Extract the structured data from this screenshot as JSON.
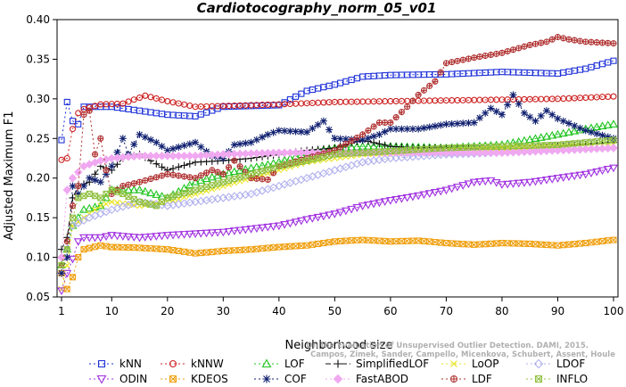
{
  "chart_data": {
    "type": "line",
    "title": "Cardiotocography_norm_05_v01",
    "xlabel": "Neighborhood size",
    "ylabel": "Adjusted Maximum F1",
    "xlim": [
      1,
      100
    ],
    "ylim": [
      0.05,
      0.4
    ],
    "xticks": [
      1,
      10,
      20,
      30,
      40,
      50,
      60,
      70,
      80,
      90,
      100
    ],
    "yticks": [
      0.05,
      0.1,
      0.15,
      0.2,
      0.25,
      0.3,
      0.35,
      0.4
    ],
    "ytick_labels": [
      "0.05",
      "0.10",
      "0.15",
      "0.20",
      "0.25",
      "0.30",
      "0.35",
      "0.40"
    ],
    "grid": false,
    "legend_position": "bottom",
    "series": [
      {
        "name": "kNN",
        "color": "#1f32d8",
        "marker": "square",
        "dash": "2,3",
        "anchors": [
          [
            1,
            0.248
          ],
          [
            2,
            0.296
          ],
          [
            3,
            0.272
          ],
          [
            4,
            0.268
          ],
          [
            5,
            0.29
          ],
          [
            10,
            0.29
          ],
          [
            15,
            0.285
          ],
          [
            20,
            0.28
          ],
          [
            25,
            0.278
          ],
          [
            30,
            0.29
          ],
          [
            40,
            0.292
          ],
          [
            45,
            0.31
          ],
          [
            50,
            0.318
          ],
          [
            55,
            0.328
          ],
          [
            60,
            0.33
          ],
          [
            70,
            0.331
          ],
          [
            80,
            0.334
          ],
          [
            90,
            0.332
          ],
          [
            95,
            0.338
          ],
          [
            100,
            0.348
          ]
        ]
      },
      {
        "name": "kNNW",
        "color": "#cc1f1f",
        "marker": "circle",
        "dash": "2,3",
        "anchors": [
          [
            1,
            0.223
          ],
          [
            2,
            0.225
          ],
          [
            3,
            0.262
          ],
          [
            4,
            0.282
          ],
          [
            5,
            0.287
          ],
          [
            8,
            0.293
          ],
          [
            12,
            0.294
          ],
          [
            16,
            0.304
          ],
          [
            20,
            0.297
          ],
          [
            25,
            0.29
          ],
          [
            30,
            0.291
          ],
          [
            40,
            0.293
          ],
          [
            50,
            0.296
          ],
          [
            60,
            0.297
          ],
          [
            70,
            0.298
          ],
          [
            80,
            0.299
          ],
          [
            90,
            0.3
          ],
          [
            100,
            0.303
          ]
        ]
      },
      {
        "name": "LOF",
        "color": "#1fc41f",
        "marker": "triangle-up",
        "dash": "2,3",
        "anchors": [
          [
            1,
            0.09
          ],
          [
            2,
            0.11
          ],
          [
            3,
            0.14
          ],
          [
            5,
            0.16
          ],
          [
            8,
            0.165
          ],
          [
            10,
            0.185
          ],
          [
            15,
            0.185
          ],
          [
            20,
            0.175
          ],
          [
            25,
            0.195
          ],
          [
            30,
            0.205
          ],
          [
            40,
            0.22
          ],
          [
            45,
            0.232
          ],
          [
            50,
            0.238
          ],
          [
            55,
            0.24
          ],
          [
            60,
            0.24
          ],
          [
            70,
            0.238
          ],
          [
            80,
            0.242
          ],
          [
            90,
            0.255
          ],
          [
            95,
            0.262
          ],
          [
            100,
            0.268
          ]
        ]
      },
      {
        "name": "SimplifiedLOF",
        "color": "#111111",
        "marker": "plus",
        "dash": "6,3",
        "anchors": [
          [
            1,
            0.11
          ],
          [
            2,
            0.125
          ],
          [
            3,
            0.175
          ],
          [
            4,
            0.19
          ],
          [
            6,
            0.195
          ],
          [
            8,
            0.215
          ],
          [
            10,
            0.21
          ],
          [
            12,
            0.225
          ],
          [
            15,
            0.23
          ],
          [
            20,
            0.21
          ],
          [
            25,
            0.22
          ],
          [
            30,
            0.222
          ],
          [
            35,
            0.225
          ],
          [
            40,
            0.23
          ],
          [
            45,
            0.235
          ],
          [
            50,
            0.238
          ],
          [
            55,
            0.248
          ],
          [
            60,
            0.24
          ],
          [
            65,
            0.238
          ],
          [
            70,
            0.238
          ],
          [
            80,
            0.236
          ],
          [
            90,
            0.24
          ],
          [
            100,
            0.245
          ]
        ]
      },
      {
        "name": "LoOP",
        "color": "#e8e21a",
        "marker": "x",
        "dash": "2,3",
        "anchors": [
          [
            1,
            0.06
          ],
          [
            2,
            0.09
          ],
          [
            3,
            0.14
          ],
          [
            5,
            0.15
          ],
          [
            8,
            0.165
          ],
          [
            10,
            0.17
          ],
          [
            15,
            0.165
          ],
          [
            20,
            0.17
          ],
          [
            25,
            0.18
          ],
          [
            30,
            0.19
          ],
          [
            35,
            0.2
          ],
          [
            40,
            0.21
          ],
          [
            45,
            0.22
          ],
          [
            50,
            0.225
          ],
          [
            55,
            0.23
          ],
          [
            60,
            0.232
          ],
          [
            70,
            0.235
          ],
          [
            80,
            0.238
          ],
          [
            90,
            0.24
          ],
          [
            100,
            0.242
          ]
        ]
      },
      {
        "name": "LDOF",
        "color": "#b0b0ee",
        "marker": "diamond",
        "dash": "2,3",
        "anchors": [
          [
            1,
            0.08
          ],
          [
            3,
            0.14
          ],
          [
            6,
            0.15
          ],
          [
            10,
            0.16
          ],
          [
            15,
            0.17
          ],
          [
            20,
            0.165
          ],
          [
            25,
            0.17
          ],
          [
            30,
            0.175
          ],
          [
            35,
            0.18
          ],
          [
            40,
            0.19
          ],
          [
            45,
            0.2
          ],
          [
            50,
            0.21
          ],
          [
            55,
            0.22
          ],
          [
            60,
            0.225
          ],
          [
            70,
            0.23
          ],
          [
            80,
            0.232
          ],
          [
            90,
            0.235
          ],
          [
            100,
            0.238
          ]
        ]
      },
      {
        "name": "ODIN",
        "color": "#a030e0",
        "marker": "triangle-down",
        "dash": "2,3",
        "anchors": [
          [
            1,
            0.058
          ],
          [
            2,
            0.08
          ],
          [
            3,
            0.098
          ],
          [
            4,
            0.12
          ],
          [
            5,
            0.125
          ],
          [
            8,
            0.125
          ],
          [
            10,
            0.128
          ],
          [
            15,
            0.125
          ],
          [
            20,
            0.128
          ],
          [
            25,
            0.13
          ],
          [
            30,
            0.132
          ],
          [
            35,
            0.136
          ],
          [
            40,
            0.14
          ],
          [
            45,
            0.148
          ],
          [
            50,
            0.155
          ],
          [
            55,
            0.165
          ],
          [
            60,
            0.172
          ],
          [
            65,
            0.178
          ],
          [
            70,
            0.185
          ],
          [
            75,
            0.195
          ],
          [
            78,
            0.197
          ],
          [
            80,
            0.192
          ],
          [
            85,
            0.195
          ],
          [
            90,
            0.2
          ],
          [
            95,
            0.205
          ],
          [
            100,
            0.213
          ]
        ]
      },
      {
        "name": "KDEOS",
        "color": "#f0a010",
        "marker": "x-square",
        "dash": "2,3",
        "anchors": [
          [
            1,
            0.08
          ],
          [
            2,
            0.06
          ],
          [
            3,
            0.075
          ],
          [
            4,
            0.1
          ],
          [
            5,
            0.11
          ],
          [
            8,
            0.115
          ],
          [
            10,
            0.113
          ],
          [
            15,
            0.112
          ],
          [
            20,
            0.11
          ],
          [
            25,
            0.105
          ],
          [
            30,
            0.108
          ],
          [
            35,
            0.11
          ],
          [
            40,
            0.113
          ],
          [
            45,
            0.115
          ],
          [
            50,
            0.12
          ],
          [
            55,
            0.122
          ],
          [
            60,
            0.12
          ],
          [
            65,
            0.121
          ],
          [
            70,
            0.118
          ],
          [
            75,
            0.116
          ],
          [
            80,
            0.118
          ],
          [
            85,
            0.117
          ],
          [
            90,
            0.115
          ],
          [
            95,
            0.118
          ],
          [
            100,
            0.122
          ]
        ]
      },
      {
        "name": "COF",
        "color": "#102070",
        "marker": "asterisk",
        "dash": "2,3",
        "anchors": [
          [
            1,
            0.08
          ],
          [
            2,
            0.1
          ],
          [
            3,
            0.19
          ],
          [
            4,
            0.18
          ],
          [
            6,
            0.2
          ],
          [
            8,
            0.195
          ],
          [
            10,
            0.215
          ],
          [
            12,
            0.25
          ],
          [
            13,
            0.23
          ],
          [
            15,
            0.255
          ],
          [
            18,
            0.245
          ],
          [
            20,
            0.235
          ],
          [
            25,
            0.245
          ],
          [
            28,
            0.228
          ],
          [
            30,
            0.225
          ],
          [
            32,
            0.242
          ],
          [
            35,
            0.245
          ],
          [
            38,
            0.255
          ],
          [
            40,
            0.26
          ],
          [
            45,
            0.258
          ],
          [
            48,
            0.272
          ],
          [
            50,
            0.25
          ],
          [
            55,
            0.248
          ],
          [
            58,
            0.255
          ],
          [
            60,
            0.262
          ],
          [
            65,
            0.262
          ],
          [
            70,
            0.268
          ],
          [
            75,
            0.27
          ],
          [
            78,
            0.288
          ],
          [
            80,
            0.28
          ],
          [
            82,
            0.305
          ],
          [
            84,
            0.282
          ],
          [
            86,
            0.272
          ],
          [
            88,
            0.285
          ],
          [
            90,
            0.275
          ],
          [
            95,
            0.26
          ],
          [
            100,
            0.25
          ]
        ]
      },
      {
        "name": "FastABOD",
        "color": "#f0a8f0",
        "marker": "diamond-filled",
        "dash": "2,3",
        "anchors": [
          [
            1,
            0.1
          ],
          [
            2,
            0.185
          ],
          [
            3,
            0.2
          ],
          [
            5,
            0.215
          ],
          [
            8,
            0.222
          ],
          [
            10,
            0.225
          ],
          [
            15,
            0.228
          ],
          [
            20,
            0.228
          ],
          [
            25,
            0.228
          ],
          [
            30,
            0.23
          ],
          [
            40,
            0.232
          ],
          [
            50,
            0.232
          ],
          [
            60,
            0.232
          ],
          [
            70,
            0.232
          ],
          [
            80,
            0.232
          ],
          [
            90,
            0.235
          ],
          [
            100,
            0.238
          ]
        ]
      },
      {
        "name": "LDF",
        "color": "#b03030",
        "marker": "circle-plus",
        "dash": "2,3",
        "anchors": [
          [
            1,
            0.09
          ],
          [
            2,
            0.12
          ],
          [
            3,
            0.165
          ],
          [
            4,
            0.19
          ],
          [
            5,
            0.28
          ],
          [
            6,
            0.285
          ],
          [
            7,
            0.23
          ],
          [
            8,
            0.25
          ],
          [
            9,
            0.21
          ],
          [
            10,
            0.18
          ],
          [
            12,
            0.19
          ],
          [
            15,
            0.195
          ],
          [
            20,
            0.205
          ],
          [
            25,
            0.2
          ],
          [
            28,
            0.21
          ],
          [
            30,
            0.205
          ],
          [
            32,
            0.222
          ],
          [
            35,
            0.2
          ],
          [
            38,
            0.198
          ],
          [
            40,
            0.215
          ],
          [
            45,
            0.225
          ],
          [
            50,
            0.235
          ],
          [
            55,
            0.255
          ],
          [
            58,
            0.27
          ],
          [
            60,
            0.27
          ],
          [
            63,
            0.29
          ],
          [
            65,
            0.305
          ],
          [
            68,
            0.322
          ],
          [
            70,
            0.345
          ],
          [
            75,
            0.352
          ],
          [
            80,
            0.358
          ],
          [
            85,
            0.368
          ],
          [
            88,
            0.372
          ],
          [
            90,
            0.378
          ],
          [
            92,
            0.375
          ],
          [
            95,
            0.372
          ],
          [
            100,
            0.37
          ]
        ]
      },
      {
        "name": "INFLO",
        "color": "#90c040",
        "marker": "x-square",
        "dash": "2,3",
        "anchors": [
          [
            1,
            0.09
          ],
          [
            2,
            0.11
          ],
          [
            3,
            0.15
          ],
          [
            4,
            0.175
          ],
          [
            6,
            0.18
          ],
          [
            8,
            0.175
          ],
          [
            10,
            0.185
          ],
          [
            12,
            0.18
          ],
          [
            15,
            0.17
          ],
          [
            18,
            0.165
          ],
          [
            20,
            0.175
          ],
          [
            25,
            0.185
          ],
          [
            30,
            0.195
          ],
          [
            35,
            0.205
          ],
          [
            40,
            0.215
          ],
          [
            45,
            0.222
          ],
          [
            50,
            0.23
          ],
          [
            55,
            0.232
          ],
          [
            60,
            0.234
          ],
          [
            70,
            0.238
          ],
          [
            80,
            0.24
          ],
          [
            90,
            0.242
          ],
          [
            100,
            0.248
          ]
        ]
      }
    ],
    "watermark": [
      "Campos, Zimek, Sander, Campello, Micenkova, Schubert, Assent, Houle",
      "On the Evaluation of Unsupervised Outlier Detection. DAMI, 2015."
    ]
  }
}
